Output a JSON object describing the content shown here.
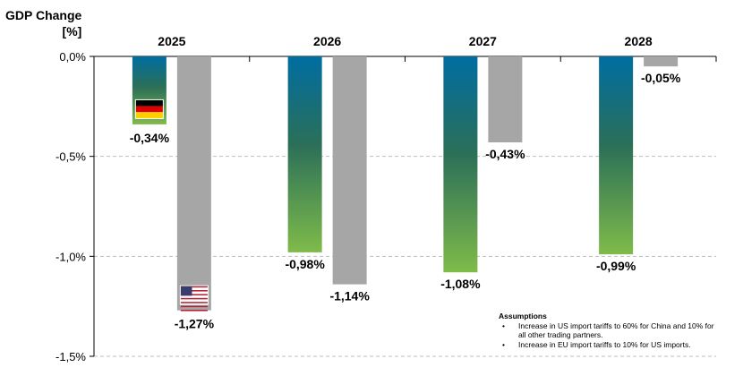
{
  "chart_data": {
    "type": "bar",
    "title": "GDP Change",
    "ylabel_unit": "[%]",
    "categories": [
      "2025",
      "2026",
      "2027",
      "2028"
    ],
    "series": [
      {
        "country": "Germany",
        "flag_icon": "germany-flag-icon",
        "values": [
          -0.34,
          -0.98,
          -1.08,
          -0.99
        ],
        "labels": [
          "-0,34%",
          "-0,98%",
          "-1,08%",
          "-0,99%"
        ],
        "gradient_top": "#006ea1",
        "gradient_mid": "#2b6f58",
        "gradient_bottom": "#7fbb4a"
      },
      {
        "country": "USA",
        "flag_icon": "usa-flag-icon",
        "values": [
          -1.27,
          -1.14,
          -0.43,
          -0.05
        ],
        "labels": [
          "-1,27%",
          "-1,14%",
          "-0,43%",
          "-0,05%"
        ],
        "color": "#a6a6a6"
      }
    ],
    "yticks": [
      {
        "value": 0.0,
        "label": "0,0%"
      },
      {
        "value": -0.5,
        "label": "-0,5%"
      },
      {
        "value": -1.0,
        "label": "-1,0%"
      },
      {
        "value": -1.5,
        "label": "-1,5%"
      }
    ],
    "ylim": [
      -1.5,
      0
    ],
    "grid": "dashed-horizontal"
  },
  "assumptions": {
    "title": "Assumptions",
    "items": [
      "Increase in US import tariffs to 60% for China and 10% for all other trading partners.",
      "Increase in EU import tariffs to 10% for US imports."
    ]
  }
}
